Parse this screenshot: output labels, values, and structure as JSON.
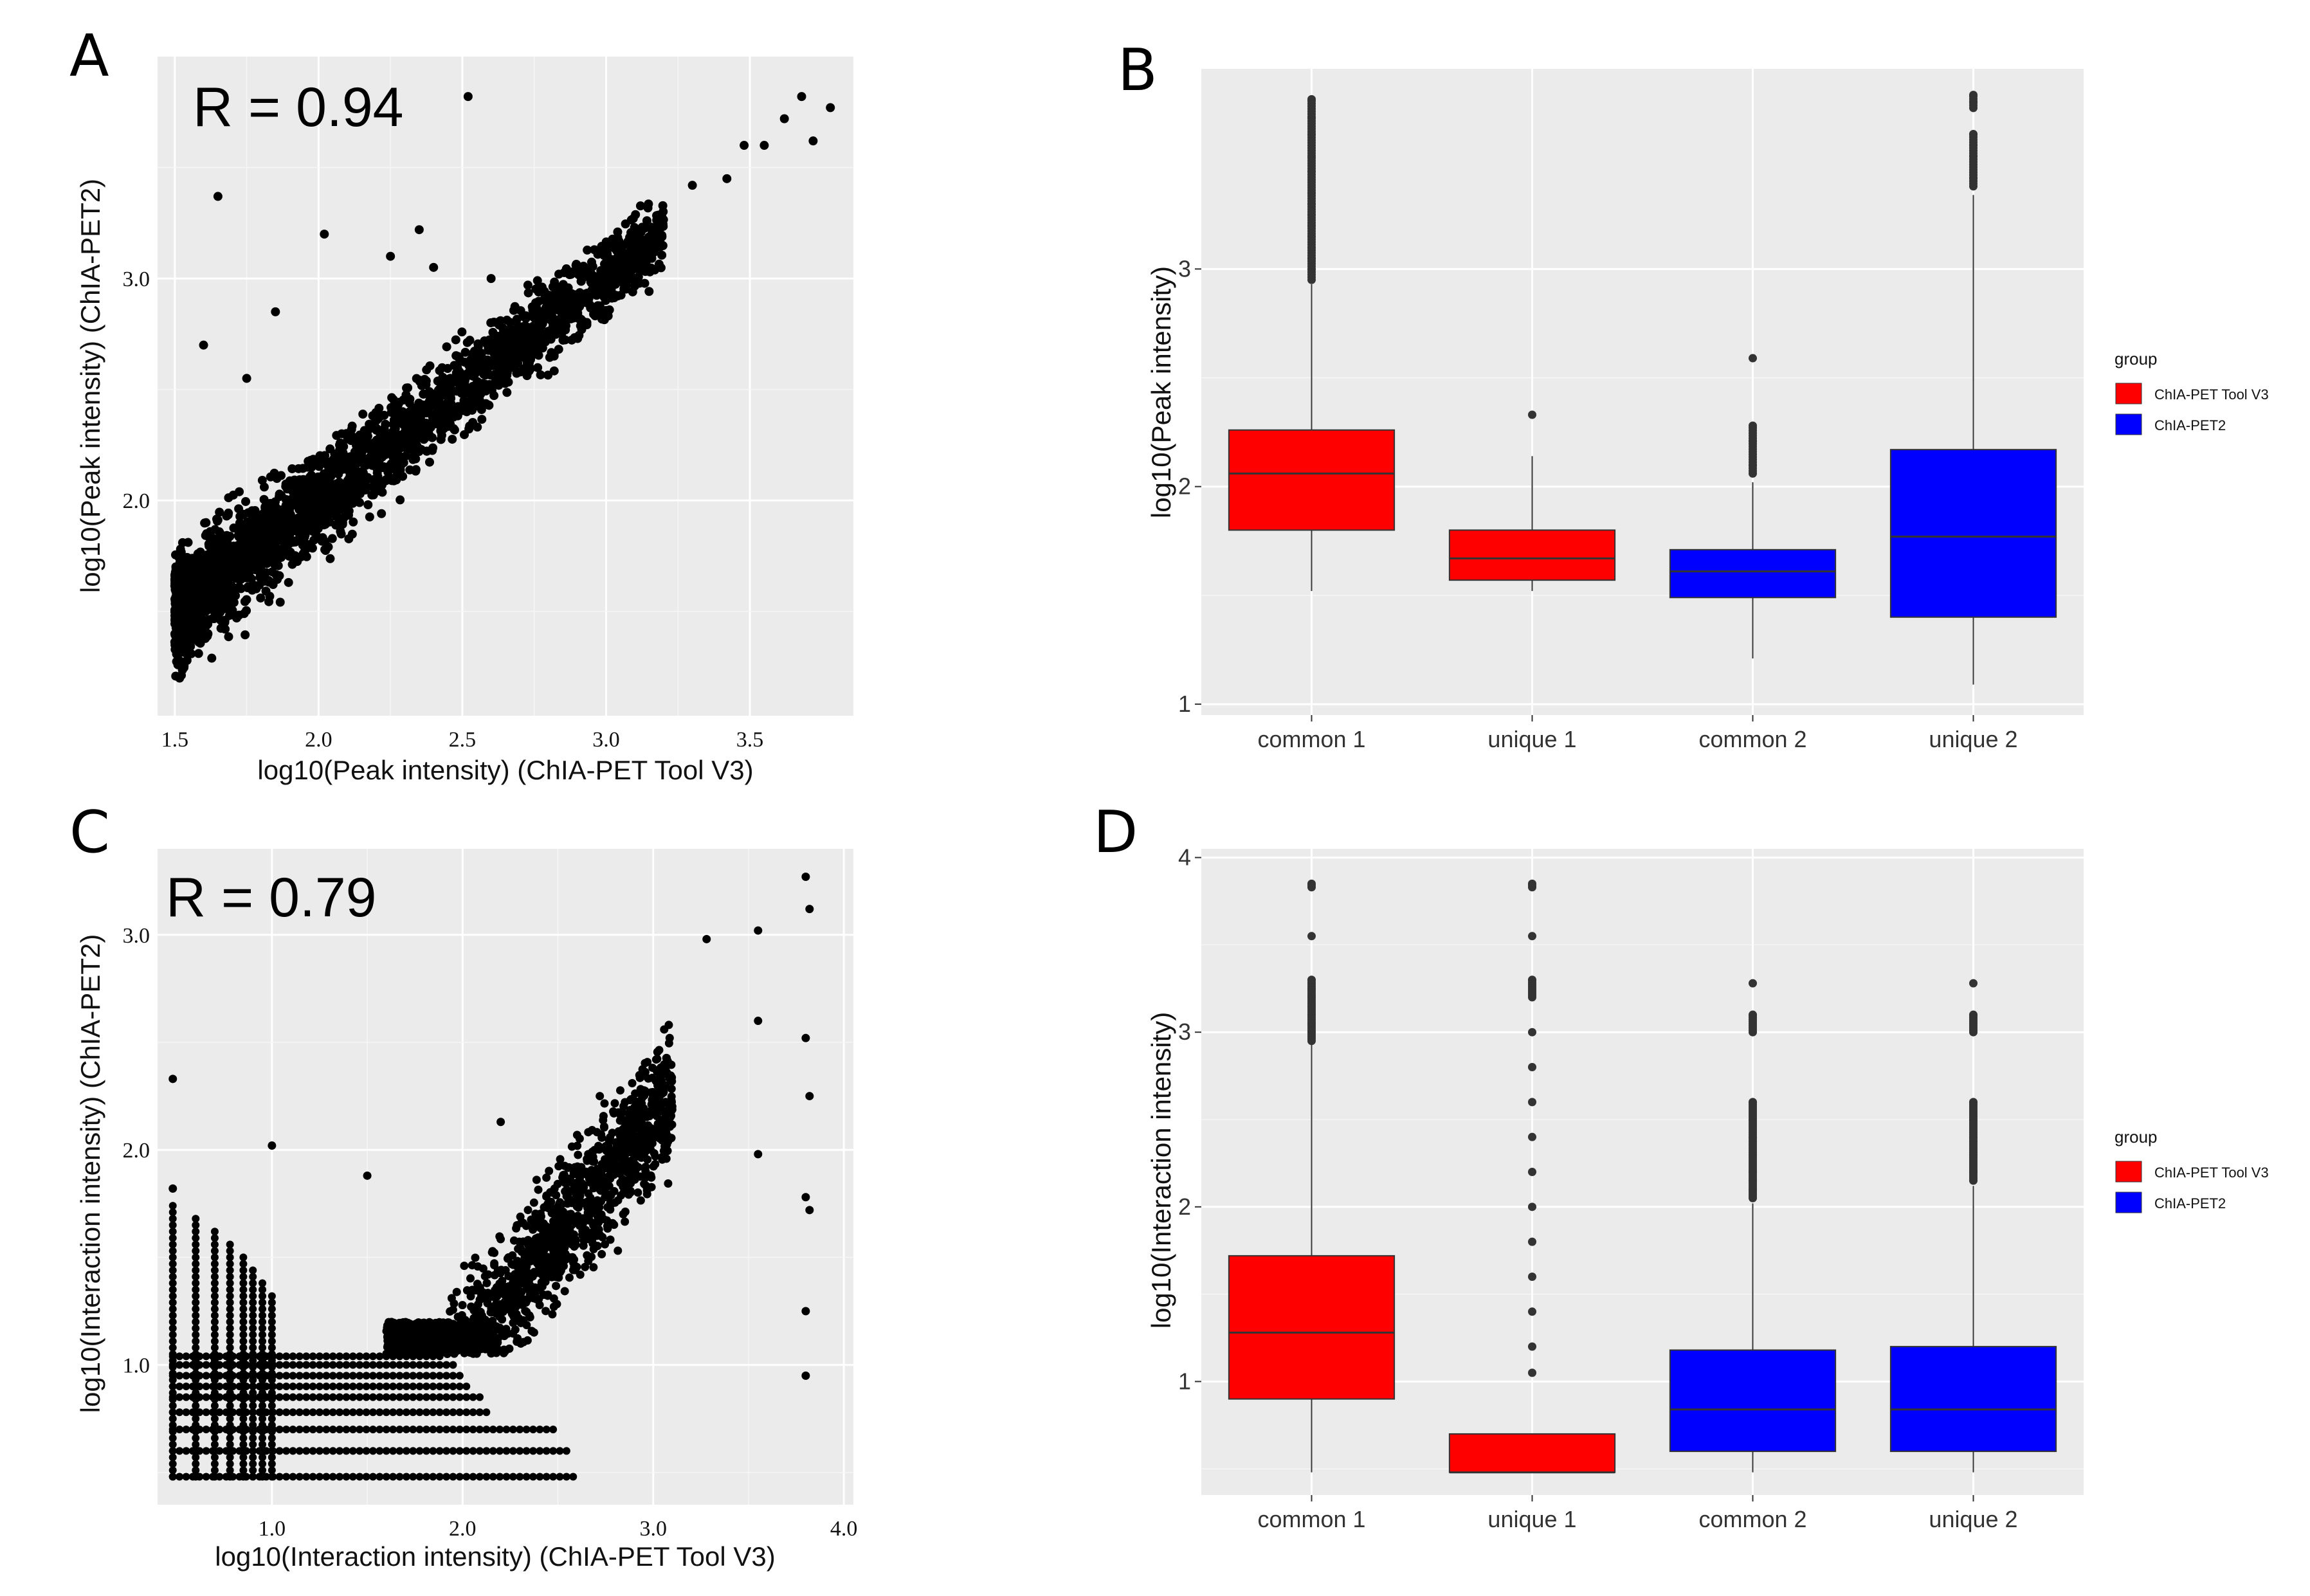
{
  "panels": {
    "A": "A",
    "B": "B",
    "C": "C",
    "D": "D"
  },
  "chart_data": [
    {
      "id": "A",
      "type": "scatter",
      "annotation": "R = 0.94",
      "xlabel": "log10(Peak intensity) (ChIA-PET Tool V3)",
      "ylabel": "log10(Peak intensity) (ChIA-PET2)",
      "xlim": [
        1.44,
        3.86
      ],
      "ylim": [
        1.03,
        4.0
      ],
      "xticks": [
        1.5,
        2.0,
        2.5,
        3.0,
        3.5
      ],
      "xtick_labels": [
        "1.5",
        "2.0",
        "2.5",
        "3.0",
        "3.5"
      ],
      "yticks": [
        2.0,
        3.0
      ],
      "ytick_labels": [
        "2.0",
        "3.0"
      ],
      "cloud": {
        "x_range": [
          1.5,
          3.2
        ],
        "slope": 1.0,
        "intercept": 0.0,
        "spread": 0.25,
        "y_min": 1.12,
        "n": 2800
      },
      "outliers": [
        [
          3.68,
          3.82
        ],
        [
          3.62,
          3.72
        ],
        [
          3.55,
          3.6
        ],
        [
          3.78,
          3.77
        ],
        [
          3.72,
          3.62
        ],
        [
          3.48,
          3.6
        ],
        [
          2.02,
          3.2
        ],
        [
          1.65,
          3.37
        ],
        [
          2.35,
          3.22
        ],
        [
          2.52,
          3.82
        ],
        [
          1.85,
          2.85
        ],
        [
          1.6,
          2.7
        ],
        [
          3.3,
          3.42
        ],
        [
          3.42,
          3.45
        ],
        [
          2.6,
          3.0
        ],
        [
          2.4,
          3.05
        ],
        [
          1.75,
          2.55
        ],
        [
          2.25,
          3.1
        ]
      ]
    },
    {
      "id": "B",
      "type": "box",
      "ylabel": "log10(Peak intensity)",
      "ylim": [
        0.95,
        3.92
      ],
      "yticks": [
        1,
        2,
        3
      ],
      "ytick_labels": [
        "1",
        "2",
        "3"
      ],
      "categories": [
        "common 1",
        "unique 1",
        "common 2",
        "unique 2"
      ],
      "boxes": [
        {
          "group": "ChIA-PET Tool V3",
          "q1": 1.8,
          "median": 2.06,
          "q3": 2.26,
          "lo": 1.52,
          "hi": 2.93,
          "outliers": [
            2.95,
            3.0,
            3.05,
            3.1,
            3.15,
            3.2,
            3.25,
            3.3,
            3.35,
            3.45,
            3.52,
            3.58,
            3.62,
            3.7,
            3.78
          ]
        },
        {
          "group": "ChIA-PET Tool V3",
          "q1": 1.57,
          "median": 1.67,
          "q3": 1.8,
          "lo": 1.52,
          "hi": 2.14,
          "outliers": [
            2.33
          ]
        },
        {
          "group": "ChIA-PET2",
          "q1": 1.49,
          "median": 1.61,
          "q3": 1.71,
          "lo": 1.21,
          "hi": 2.02,
          "outliers": [
            2.06,
            2.1,
            2.16,
            2.21,
            2.28,
            2.59
          ]
        },
        {
          "group": "ChIA-PET2",
          "q1": 1.4,
          "median": 1.77,
          "q3": 2.17,
          "lo": 1.09,
          "hi": 3.34,
          "outliers": [
            3.38,
            3.42,
            3.52,
            3.57,
            3.62,
            3.74,
            3.77,
            3.8
          ]
        }
      ],
      "legend": {
        "title": "group",
        "items": [
          {
            "label": "ChIA-PET Tool V3",
            "color": "#ff0000"
          },
          {
            "label": "ChIA-PET2",
            "color": "#0000ff"
          }
        ]
      }
    },
    {
      "id": "C",
      "type": "scatter",
      "annotation": "R = 0.79",
      "xlabel": "log10(Interaction intensity) (ChIA-PET Tool V3)",
      "ylabel": "log10(Interaction intensity) (ChIA-PET2)",
      "xlim": [
        0.4,
        4.05
      ],
      "ylim": [
        0.35,
        3.4
      ],
      "xticks": [
        1.0,
        2.0,
        3.0,
        4.0
      ],
      "xtick_labels": [
        "1.0",
        "2.0",
        "3.0",
        "4.0"
      ],
      "yticks": [
        1.0,
        2.0,
        3.0
      ],
      "ytick_labels": [
        "1.0",
        "2.0",
        "3.0"
      ],
      "columns": [
        0.48,
        0.6,
        0.7,
        0.78,
        0.85,
        0.9,
        0.95,
        1.0
      ],
      "rows": [
        0.48,
        0.6,
        0.7,
        0.78,
        0.85,
        0.9,
        0.95,
        1.0,
        1.04
      ],
      "cloud": {
        "x_range": [
          1.6,
          3.1
        ],
        "slope": 1.1,
        "intercept": -1.15,
        "spread": 0.3,
        "n": 1600
      },
      "outliers": [
        [
          3.8,
          3.27
        ],
        [
          3.82,
          3.12
        ],
        [
          3.55,
          3.02
        ],
        [
          3.28,
          2.98
        ],
        [
          3.55,
          2.6
        ],
        [
          3.8,
          2.52
        ],
        [
          3.82,
          2.25
        ],
        [
          3.55,
          1.98
        ],
        [
          3.8,
          1.78
        ],
        [
          3.82,
          1.72
        ],
        [
          3.8,
          1.25
        ],
        [
          3.8,
          0.95
        ],
        [
          0.48,
          2.33
        ],
        [
          1.0,
          2.02
        ],
        [
          2.2,
          2.13
        ],
        [
          0.48,
          1.82
        ],
        [
          1.5,
          1.88
        ]
      ]
    },
    {
      "id": "D",
      "type": "box",
      "ylabel": "log10(Interaction intensity)",
      "ylim": [
        0.35,
        4.05
      ],
      "yticks": [
        1,
        2,
        3,
        4
      ],
      "ytick_labels": [
        "1",
        "2",
        "3",
        "4"
      ],
      "categories": [
        "common 1",
        "unique 1",
        "common 2",
        "unique 2"
      ],
      "boxes": [
        {
          "group": "ChIA-PET Tool V3",
          "q1": 0.9,
          "median": 1.28,
          "q3": 1.72,
          "lo": 0.48,
          "hi": 2.93,
          "outliers": [
            2.95,
            3.0,
            3.05,
            3.1,
            3.15,
            3.2,
            3.25,
            3.3,
            3.55,
            3.83,
            3.85
          ]
        },
        {
          "group": "ChIA-PET Tool V3",
          "q1": 0.48,
          "median": 0.48,
          "q3": 0.7,
          "lo": 0.48,
          "hi": 0.7,
          "outliers": [
            1.05,
            1.2,
            1.4,
            1.6,
            1.8,
            2.0,
            2.2,
            2.4,
            2.6,
            2.8,
            3.0,
            3.2,
            3.3,
            3.55,
            3.83,
            3.85
          ]
        },
        {
          "group": "ChIA-PET2",
          "q1": 0.6,
          "median": 0.84,
          "q3": 1.18,
          "lo": 0.48,
          "hi": 2.02,
          "outliers": [
            2.05,
            2.1,
            2.15,
            2.2,
            2.3,
            2.4,
            2.5,
            2.6,
            3.0,
            3.1,
            3.28
          ]
        },
        {
          "group": "ChIA-PET2",
          "q1": 0.6,
          "median": 0.84,
          "q3": 1.2,
          "lo": 0.48,
          "hi": 2.12,
          "outliers": [
            2.15,
            2.2,
            2.3,
            2.4,
            2.5,
            2.6,
            3.0,
            3.1,
            3.28
          ]
        }
      ],
      "legend": {
        "title": "group",
        "items": [
          {
            "label": "ChIA-PET Tool V3",
            "color": "#ff0000"
          },
          {
            "label": "ChIA-PET2",
            "color": "#0000ff"
          }
        ]
      }
    }
  ]
}
